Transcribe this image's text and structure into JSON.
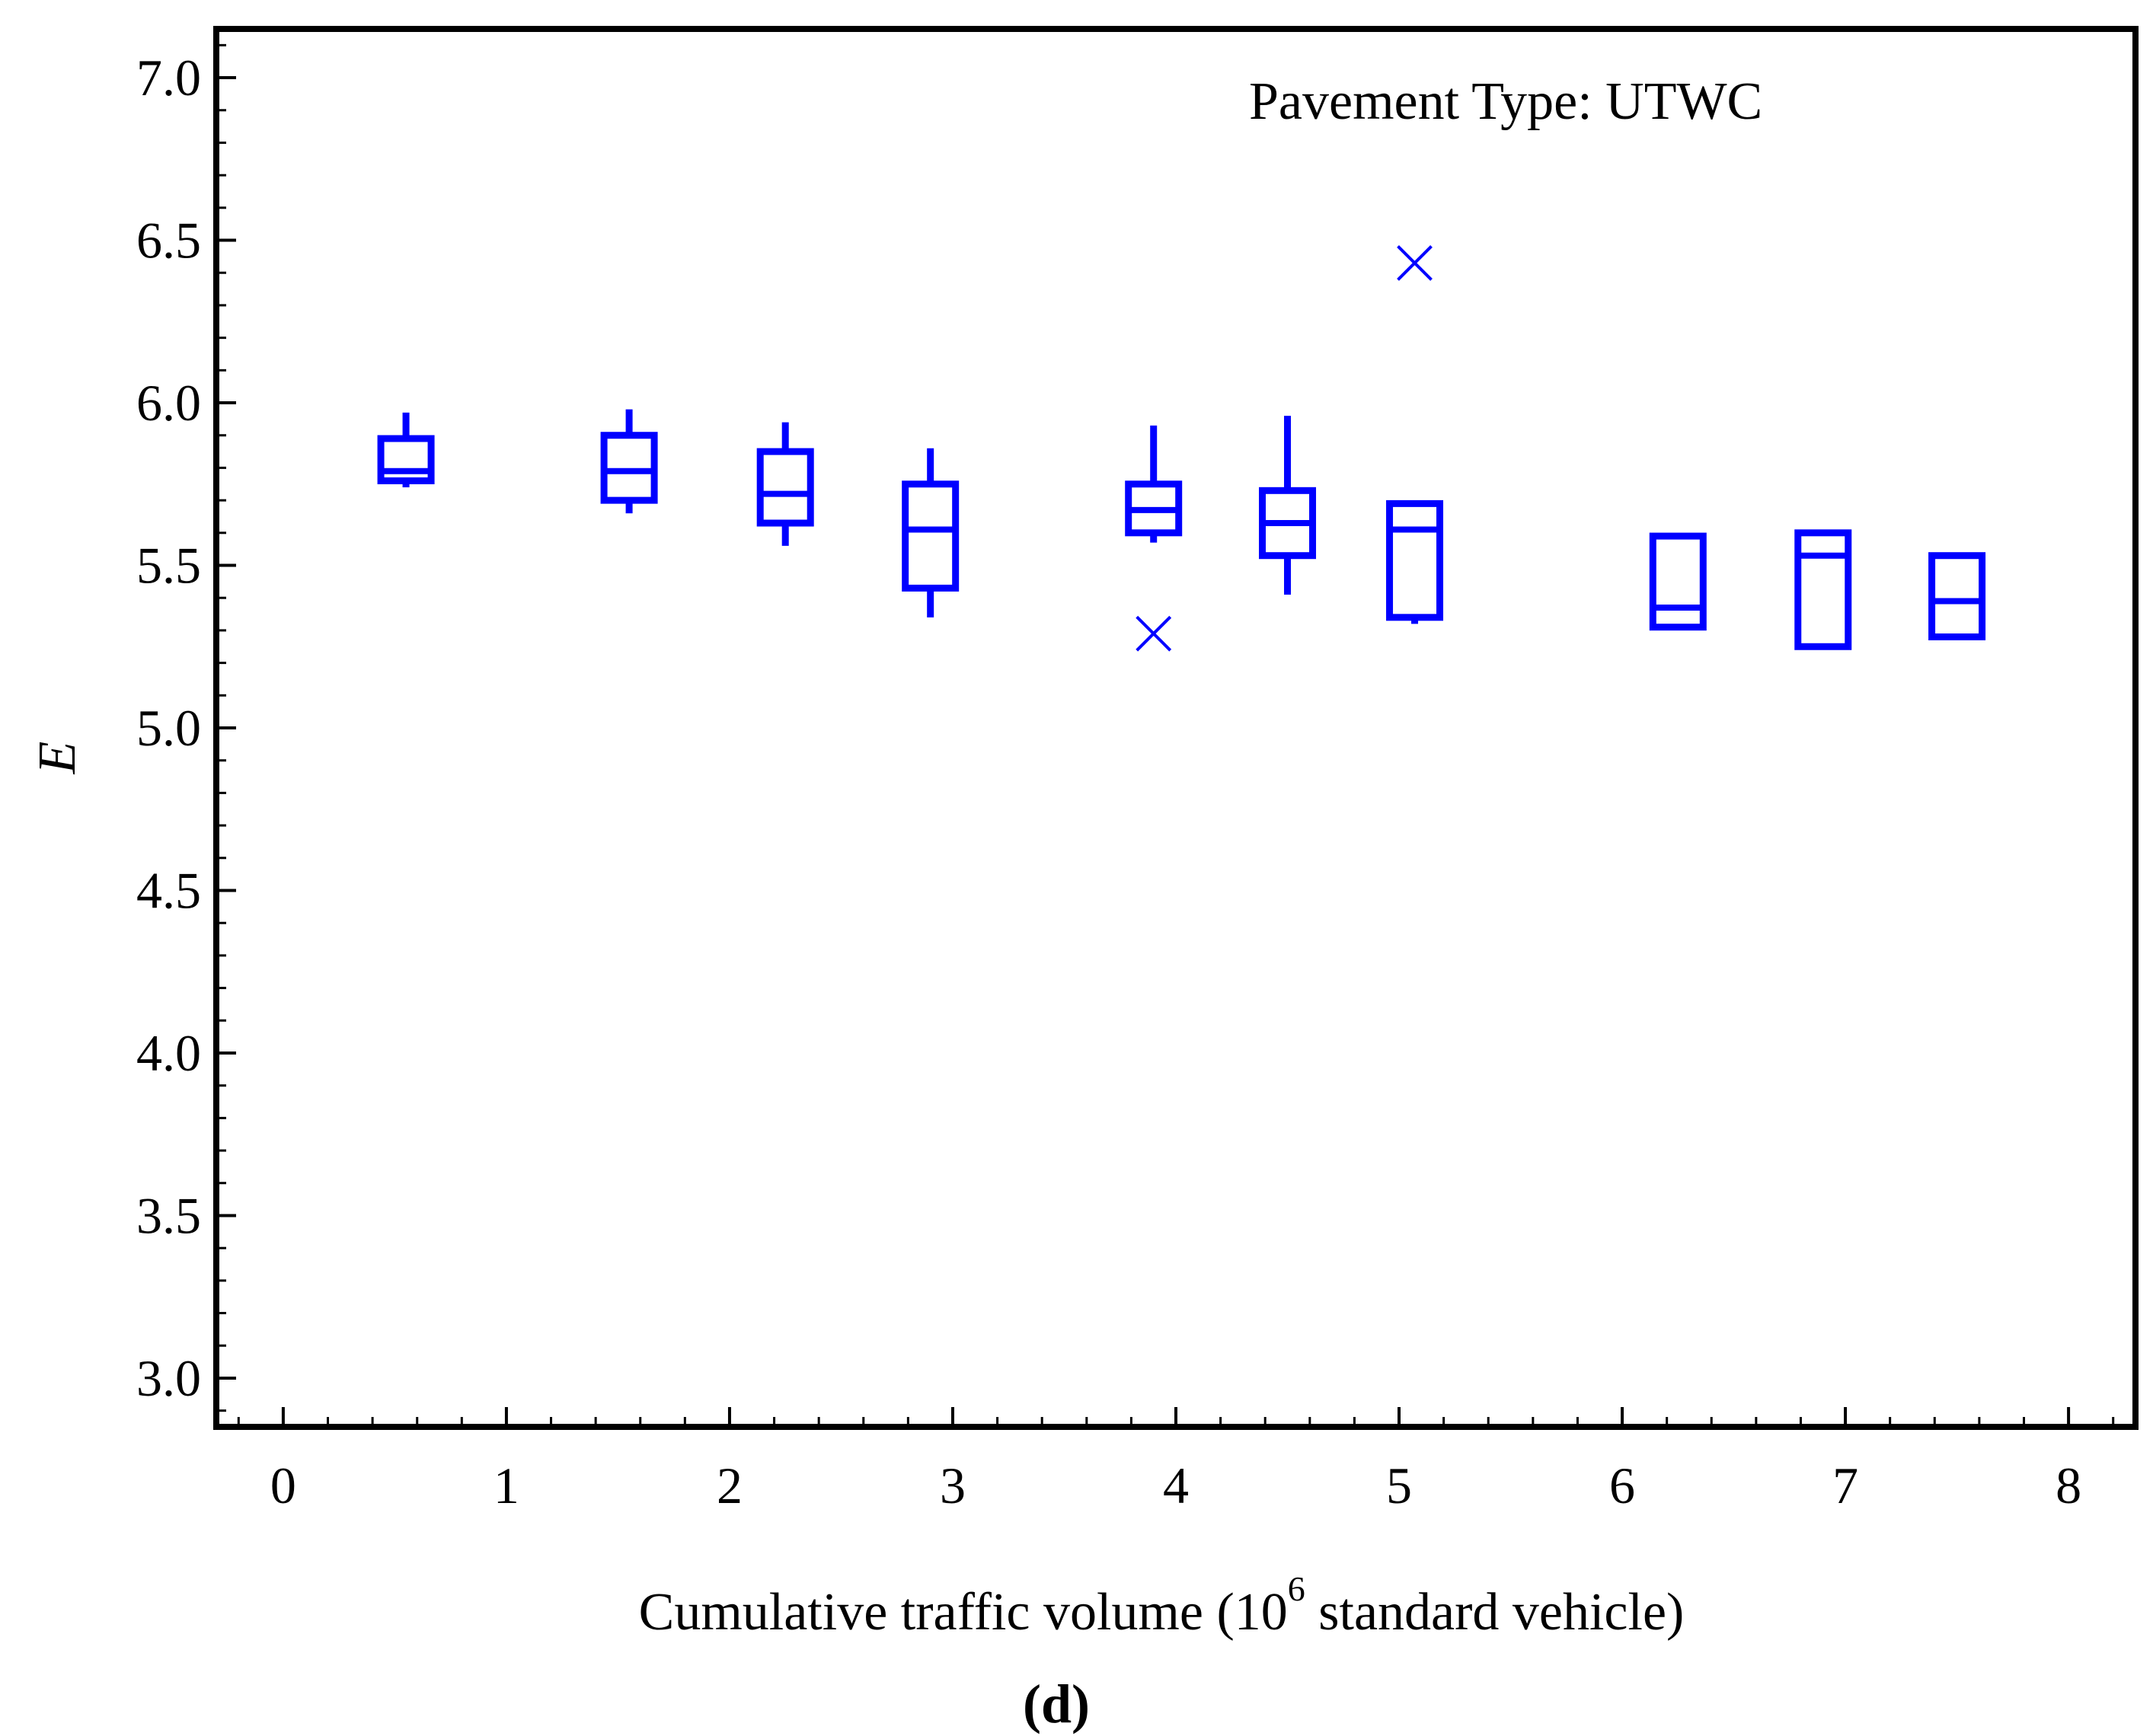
{
  "chart_data": {
    "type": "box",
    "annotation": "Pavement Type: UTWC",
    "xlabel": "Cumulative traffic volume (10",
    "xlabel_exponent": "6",
    "xlabel_suffix": " standard vehicle)",
    "ylabel": "E",
    "panel_label": "(d)",
    "xlim": [
      -0.3,
      8.3
    ],
    "ylim": [
      2.85,
      7.15
    ],
    "xticks": [
      0,
      1,
      2,
      3,
      4,
      5,
      6,
      7,
      8
    ],
    "xtick_labels": [
      "0",
      "1",
      "2",
      "3",
      "4",
      "5",
      "6",
      "7",
      "8"
    ],
    "yticks": [
      3.0,
      3.5,
      4.0,
      4.5,
      5.0,
      5.5,
      6.0,
      6.5,
      7.0
    ],
    "ytick_labels": [
      "3.0",
      "3.5",
      "4.0",
      "4.5",
      "5.0",
      "5.5",
      "6.0",
      "6.5",
      "7.0"
    ],
    "color": "#0000ff",
    "boxes": [
      {
        "x": 0.55,
        "whisker_low": 5.74,
        "q1": 5.76,
        "median": 5.79,
        "q3": 5.89,
        "whisker_high": 5.97
      },
      {
        "x": 1.55,
        "whisker_low": 5.66,
        "q1": 5.7,
        "median": 5.79,
        "q3": 5.9,
        "whisker_high": 5.98
      },
      {
        "x": 2.25,
        "whisker_low": 5.56,
        "q1": 5.63,
        "median": 5.72,
        "q3": 5.85,
        "whisker_high": 5.94
      },
      {
        "x": 2.9,
        "whisker_low": 5.34,
        "q1": 5.43,
        "median": 5.61,
        "q3": 5.75,
        "whisker_high": 5.86
      },
      {
        "x": 3.9,
        "whisker_low": 5.57,
        "q1": 5.6,
        "median": 5.67,
        "q3": 5.75,
        "whisker_high": 5.93
      },
      {
        "x": 4.5,
        "whisker_low": 5.41,
        "q1": 5.53,
        "median": 5.63,
        "q3": 5.73,
        "whisker_high": 5.96
      },
      {
        "x": 5.07,
        "whisker_low": 5.32,
        "q1": 5.34,
        "median": 5.61,
        "q3": 5.69,
        "whisker_high": 5.69
      },
      {
        "x": 6.25,
        "whisker_low": 5.31,
        "q1": 5.31,
        "median": 5.37,
        "q3": 5.59,
        "whisker_high": 5.59
      },
      {
        "x": 6.9,
        "whisker_low": 5.25,
        "q1": 5.25,
        "median": 5.53,
        "q3": 5.6,
        "whisker_high": 5.6
      },
      {
        "x": 7.5,
        "whisker_low": 5.28,
        "q1": 5.28,
        "median": 5.39,
        "q3": 5.53,
        "whisker_high": 5.53
      }
    ],
    "outliers": [
      {
        "x": 3.9,
        "y": 5.29
      },
      {
        "x": 5.07,
        "y": 6.43
      }
    ]
  }
}
